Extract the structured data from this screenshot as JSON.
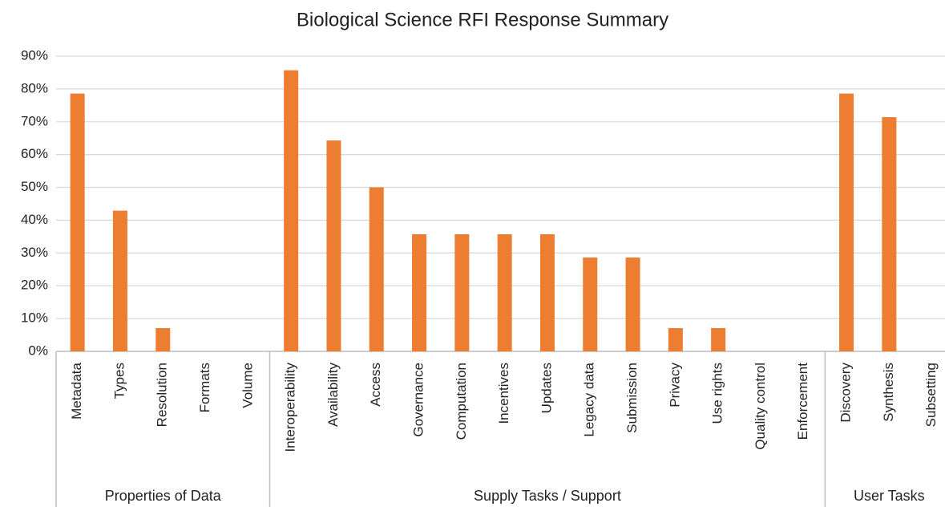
{
  "chart_data": {
    "type": "bar",
    "title": "Biological Science RFI Response Summary",
    "color": "#ed7d31",
    "grid": true,
    "groups": [
      {
        "name": "Properties of Data",
        "categories": [
          "Metadata",
          "Types",
          "Resolution",
          "Formats",
          "Volume"
        ],
        "values": [
          78.6,
          42.9,
          7.1,
          0,
          0
        ]
      },
      {
        "name": "Supply Tasks / Support",
        "categories": [
          "Interoperability",
          "Availability",
          "Access",
          "Governance",
          "Computation",
          "Incentives",
          "Updates",
          "Legacy data",
          "Submission",
          "Privacy",
          "Use rights",
          "Quality control",
          "Enforcement"
        ],
        "values": [
          85.7,
          64.3,
          50,
          35.7,
          35.7,
          35.7,
          35.7,
          28.6,
          28.6,
          7.1,
          7.1,
          0,
          0
        ]
      },
      {
        "name": "User Tasks",
        "categories": [
          "Discovery",
          "Synthesis",
          "Subsetting"
        ],
        "values": [
          78.6,
          71.4,
          0
        ]
      }
    ],
    "ylim": [
      0,
      90
    ],
    "yticks": [
      {
        "value": 0,
        "label": "0%"
      },
      {
        "value": 10,
        "label": "10%"
      },
      {
        "value": 20,
        "label": "20%"
      },
      {
        "value": 30,
        "label": "30%"
      },
      {
        "value": 40,
        "label": "40%"
      },
      {
        "value": 50,
        "label": "50%"
      },
      {
        "value": 60,
        "label": "60%"
      },
      {
        "value": 70,
        "label": "70%"
      },
      {
        "value": 80,
        "label": "80%"
      },
      {
        "value": 90,
        "label": "90%"
      }
    ]
  }
}
